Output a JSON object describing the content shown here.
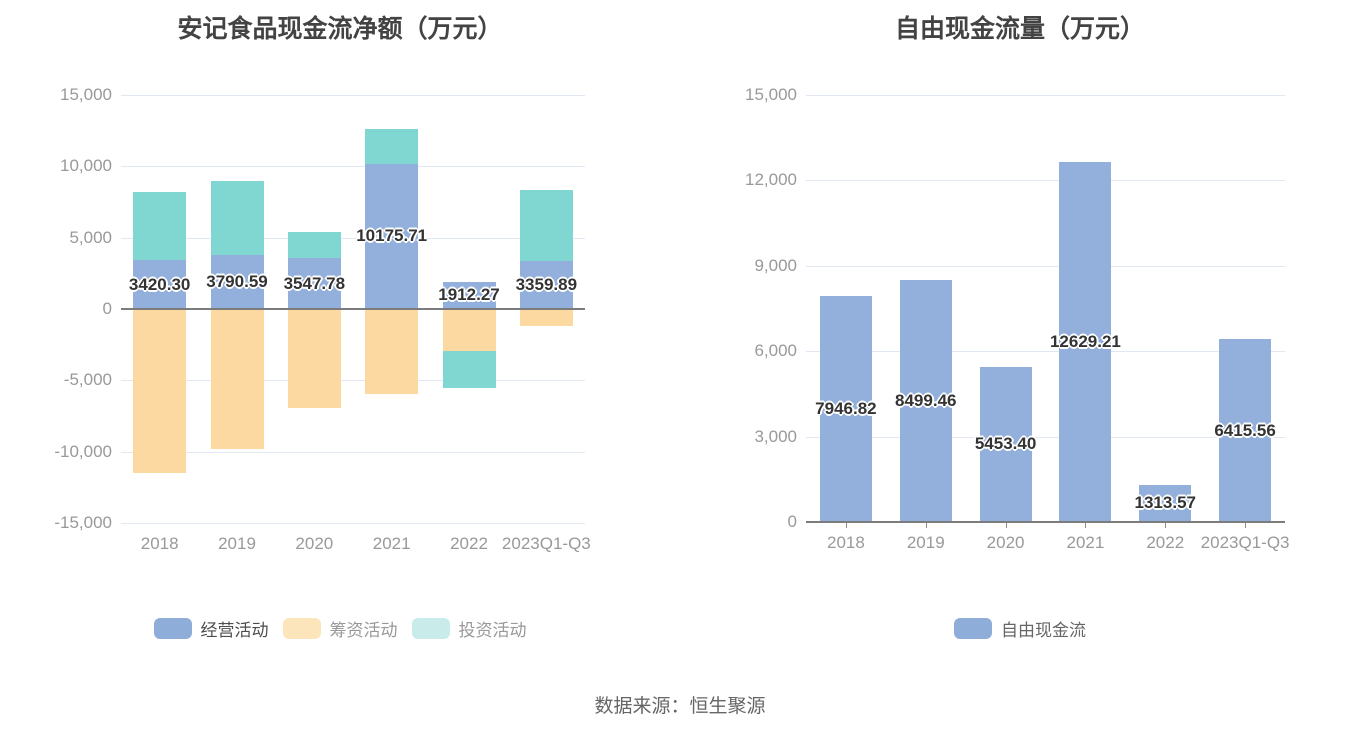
{
  "source": {
    "text": "数据来源：恒生聚源"
  },
  "colors": {
    "background": "#ffffff",
    "title_text": "#434343",
    "grid_line": "#e2e8f3",
    "zero_axis_line": "#7c7c7c",
    "axis_tick_label": "#999999",
    "bar_value_label": "#333333",
    "source_text": "#666666",
    "series_blue": "#92b0db",
    "series_orange": "#fbd9a1",
    "series_teal": "#80d6d1"
  },
  "chart_data": [
    {
      "type": "bar",
      "stacked": true,
      "title": "安记食品现金流净额（万元）",
      "categories": [
        "2018",
        "2019",
        "2020",
        "2021",
        "2022",
        "2023Q1-Q3"
      ],
      "ylim": [
        -15000,
        15000
      ],
      "ytick_interval": 5000,
      "ytick_labels": [
        "-15,000",
        "-10,000",
        "-5,000",
        "0",
        "5,000",
        "10,000",
        "15,000"
      ],
      "grid": true,
      "legend_position": "bottom",
      "x_ticks": false,
      "series": [
        {
          "name": "经营活动",
          "slug": "operating-activities",
          "color": "#92b0db",
          "legend_color": "#8fadd9",
          "label_color": "#4d4d4d",
          "values": [
            3420.3,
            3790.59,
            3547.78,
            10175.71,
            1912.27,
            3359.89
          ],
          "value_labels": [
            "3420.30",
            "3790.59",
            "3547.78",
            "10175.71",
            "1912.27",
            "3359.89"
          ]
        },
        {
          "name": "筹资活动",
          "slug": "financing-activities",
          "color": "#fbd9a1",
          "legend_color": "#fde5bb",
          "label_color": "#999999",
          "values": [
            -11500,
            -9800,
            -6950,
            -5950,
            -2940,
            -1190
          ]
        },
        {
          "name": "投资活动",
          "slug": "investing-activities",
          "color": "#80d6d1",
          "legend_color": "#c9ebe9",
          "label_color": "#999999",
          "values": [
            4760,
            5180,
            1870,
            2450,
            -2620,
            4980
          ]
        }
      ]
    },
    {
      "type": "bar",
      "stacked": false,
      "title": "自由现金流量（万元）",
      "categories": [
        "2018",
        "2019",
        "2020",
        "2021",
        "2022",
        "2023Q1-Q3"
      ],
      "ylim": [
        0,
        15000
      ],
      "ytick_interval": 3000,
      "ytick_labels": [
        "0",
        "3,000",
        "6,000",
        "9,000",
        "12,000",
        "15,000"
      ],
      "grid": true,
      "legend_position": "bottom",
      "x_ticks": true,
      "series": [
        {
          "name": "自由现金流",
          "slug": "free-cash-flow",
          "color": "#92b0db",
          "legend_color": "#8fadd9",
          "label_color": "#666666",
          "values": [
            7946.82,
            8499.46,
            5453.4,
            12629.21,
            1313.57,
            6415.56
          ],
          "value_labels": [
            "7946.82",
            "8499.46",
            "5453.40",
            "12629.21",
            "1313.57",
            "6415.56"
          ]
        }
      ]
    }
  ]
}
